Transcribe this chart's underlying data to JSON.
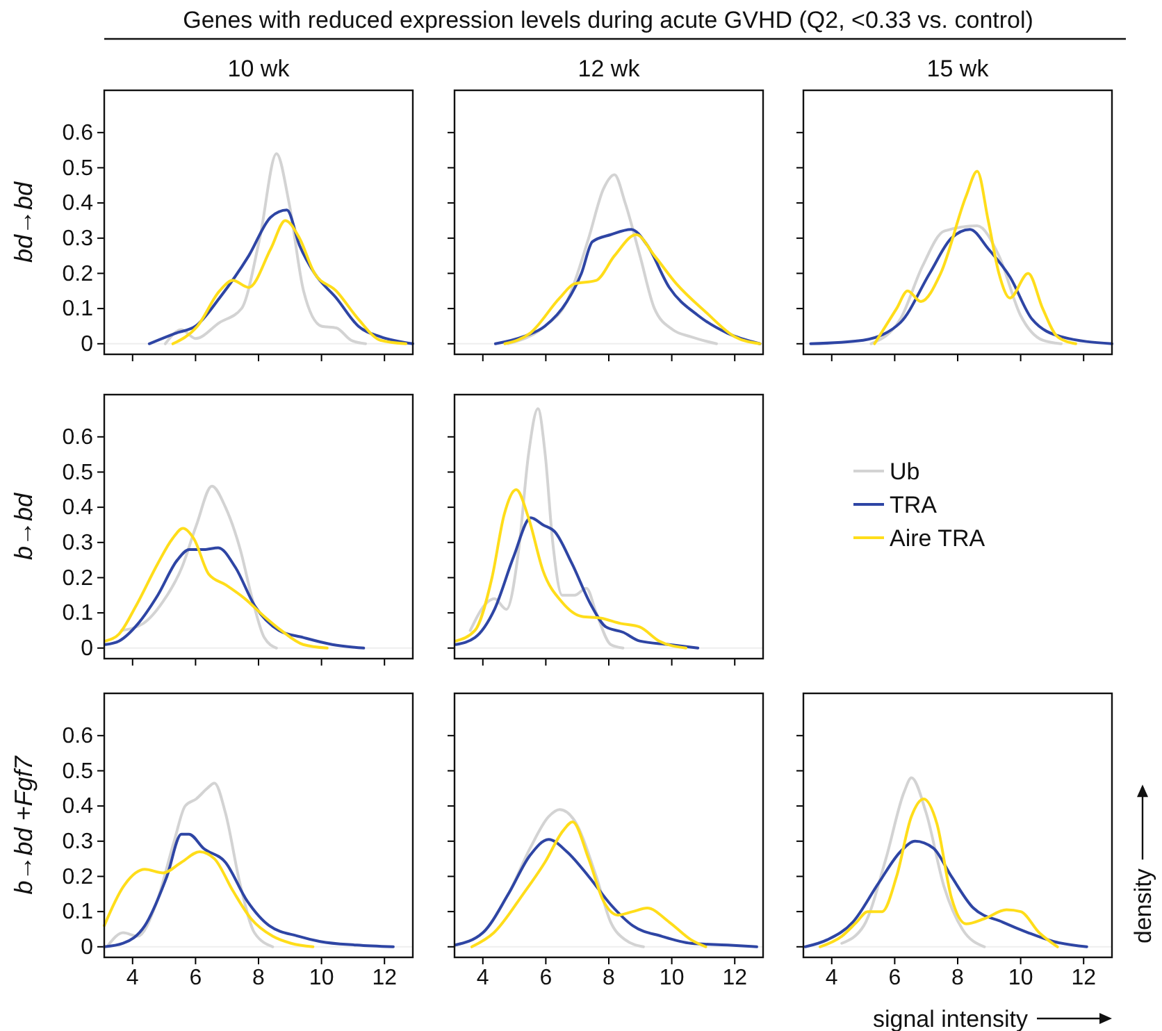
{
  "chart_data": [
    {
      "type": "line",
      "title": "10 wk",
      "ylabel": "bd→bd",
      "xlim": [
        3.1,
        12.9
      ],
      "ylim": [
        -0.03,
        0.72
      ],
      "xticks": [
        4,
        6,
        8,
        10,
        12
      ],
      "yticks": [
        0,
        0.1,
        0.2,
        0.3,
        0.4,
        0.5,
        0.6
      ],
      "tick_labels": "y",
      "ref_lines": [
        {
          "axis": "y",
          "value": 0,
          "color": "#eeeeee"
        }
      ],
      "series": [
        {
          "color": "#d3d3d3",
          "x": [
            5.04,
            5.55,
            6.0,
            6.76,
            7.46,
            8.04,
            8.57,
            8.97,
            9.43,
            10.0,
            10.47,
            10.94,
            11.4
          ],
          "values": [
            0,
            0.04,
            0.015,
            0.06,
            0.1,
            0.3,
            0.54,
            0.4,
            0.15,
            0.05,
            0.045,
            0.01,
            0
          ]
        },
        {
          "color": "#2e45a4",
          "x": [
            4.53,
            5.37,
            6.0,
            6.76,
            7.69,
            8.39,
            8.9,
            9.3,
            9.78,
            10.47,
            11.17,
            11.87,
            12.9
          ],
          "values": [
            0,
            0.03,
            0.05,
            0.13,
            0.25,
            0.36,
            0.38,
            0.28,
            0.2,
            0.13,
            0.05,
            0.02,
            0
          ]
        },
        {
          "color": "#ffdd1a",
          "x": [
            5.28,
            6.06,
            6.76,
            7.18,
            7.69,
            8.39,
            8.85,
            9.3,
            9.78,
            10.47,
            11.17,
            11.87,
            12.68
          ],
          "values": [
            0,
            0.05,
            0.15,
            0.18,
            0.16,
            0.27,
            0.35,
            0.3,
            0.2,
            0.15,
            0.07,
            0.01,
            0
          ]
        }
      ]
    },
    {
      "type": "line",
      "title": "12 wk",
      "annotations": [
        "Genes with reduced expression levels during acute GVHD (Q2, <0.33 vs. control)"
      ],
      "xlim": [
        3.1,
        12.9
      ],
      "ylim": [
        -0.03,
        0.72
      ],
      "xticks": [
        4,
        6,
        8,
        10,
        12
      ],
      "yticks": [
        0,
        0.1,
        0.2,
        0.3,
        0.4,
        0.5,
        0.6
      ],
      "tick_labels": false,
      "ref_lines": [
        {
          "axis": "y",
          "value": 0,
          "color": "#eeeeee"
        }
      ],
      "series": [
        {
          "color": "#d3d3d3",
          "x": [
            4.8,
            5.97,
            6.67,
            7.36,
            7.83,
            8.18,
            8.52,
            8.99,
            9.45,
            10.03,
            10.6,
            11.42
          ],
          "values": [
            0,
            0.05,
            0.12,
            0.3,
            0.44,
            0.48,
            0.4,
            0.25,
            0.1,
            0.04,
            0.02,
            0
          ]
        },
        {
          "color": "#2e45a4",
          "x": [
            4.4,
            5.28,
            5.97,
            6.67,
            7.13,
            7.48,
            8.06,
            8.71,
            9.22,
            9.92,
            10.84,
            11.77,
            12.8
          ],
          "values": [
            0,
            0.02,
            0.05,
            0.12,
            0.2,
            0.29,
            0.31,
            0.325,
            0.28,
            0.16,
            0.08,
            0.03,
            0
          ]
        },
        {
          "color": "#ffdd1a",
          "x": [
            4.7,
            5.5,
            6.44,
            6.9,
            7.6,
            8.18,
            8.87,
            9.45,
            10.15,
            11.08,
            12.0,
            12.8
          ],
          "values": [
            0,
            0.03,
            0.13,
            0.17,
            0.18,
            0.25,
            0.31,
            0.25,
            0.17,
            0.09,
            0.02,
            0
          ]
        }
      ]
    },
    {
      "type": "line",
      "title": "15 wk",
      "xlim": [
        3.1,
        12.9
      ],
      "ylim": [
        -0.03,
        0.72
      ],
      "xticks": [
        4,
        6,
        8,
        10,
        12
      ],
      "yticks": [
        0,
        0.1,
        0.2,
        0.3,
        0.4,
        0.5,
        0.6
      ],
      "tick_labels": false,
      "ref_lines": [
        {
          "axis": "y",
          "value": 0,
          "color": "#eeeeee"
        }
      ],
      "series": [
        {
          "color": "#d3d3d3",
          "x": [
            5.25,
            6.18,
            6.88,
            7.57,
            8.62,
            9.31,
            10.0,
            10.7,
            11.29
          ],
          "values": [
            0,
            0.07,
            0.22,
            0.32,
            0.335,
            0.25,
            0.08,
            0.01,
            0
          ]
        },
        {
          "color": "#2e45a4",
          "x": [
            3.33,
            5.0,
            6.18,
            7.11,
            7.8,
            8.39,
            8.97,
            9.66,
            10.36,
            11.29,
            12.9
          ],
          "values": [
            0,
            0.01,
            0.06,
            0.2,
            0.3,
            0.325,
            0.27,
            0.19,
            0.07,
            0.02,
            0
          ]
        },
        {
          "color": "#ffdd1a",
          "x": [
            5.36,
            6.06,
            6.41,
            6.83,
            7.46,
            8.27,
            8.62,
            8.97,
            9.31,
            9.66,
            10.24,
            10.7,
            11.17,
            11.75
          ],
          "values": [
            0,
            0.1,
            0.15,
            0.12,
            0.2,
            0.42,
            0.49,
            0.35,
            0.2,
            0.13,
            0.2,
            0.1,
            0.02,
            0
          ]
        }
      ]
    },
    {
      "type": "line",
      "ylabel": "b→bd",
      "xlim": [
        3.1,
        12.9
      ],
      "ylim": [
        -0.03,
        0.72
      ],
      "xticks": [
        4,
        6,
        8,
        10,
        12
      ],
      "yticks": [
        0,
        0.1,
        0.2,
        0.3,
        0.4,
        0.5,
        0.6
      ],
      "tick_labels": "y",
      "ref_lines": [
        {
          "axis": "y",
          "value": 0,
          "color": "#eeeeee"
        }
      ],
      "series": [
        {
          "color": "#d3d3d3",
          "x": [
            3.65,
            4.34,
            4.95,
            5.57,
            6.03,
            6.52,
            6.95,
            7.42,
            7.8,
            8.18,
            8.57
          ],
          "values": [
            0.05,
            0.07,
            0.13,
            0.23,
            0.35,
            0.46,
            0.4,
            0.28,
            0.14,
            0.03,
            0
          ]
        },
        {
          "color": "#2e45a4",
          "x": [
            3.14,
            3.57,
            4.18,
            4.8,
            5.42,
            5.8,
            6.26,
            6.72,
            7.26,
            7.88,
            8.65,
            9.42,
            10.34,
            11.34
          ],
          "values": [
            0.01,
            0.02,
            0.07,
            0.15,
            0.25,
            0.28,
            0.28,
            0.285,
            0.23,
            0.12,
            0.05,
            0.03,
            0.01,
            0
          ]
        },
        {
          "color": "#ffdd1a",
          "x": [
            3.14,
            3.57,
            4.11,
            4.8,
            5.26,
            5.6,
            5.95,
            6.42,
            6.95,
            7.57,
            8.18,
            8.72,
            9.42,
            10.18
          ],
          "values": [
            0.02,
            0.04,
            0.12,
            0.24,
            0.31,
            0.34,
            0.31,
            0.21,
            0.18,
            0.14,
            0.09,
            0.05,
            0.01,
            0
          ]
        }
      ]
    },
    {
      "type": "line",
      "legend": "right",
      "xlim": [
        3.1,
        12.9
      ],
      "ylim": [
        -0.03,
        0.72
      ],
      "xticks": [
        4,
        6,
        8,
        10,
        12
      ],
      "yticks": [
        0,
        0.1,
        0.2,
        0.3,
        0.4,
        0.5,
        0.6
      ],
      "tick_labels": false,
      "ref_lines": [
        {
          "axis": "y",
          "value": 0,
          "color": "#eeeeee"
        }
      ],
      "series": [
        {
          "name": "Ub",
          "color": "#d3d3d3",
          "x": [
            3.6,
            4.14,
            4.37,
            4.75,
            5.14,
            5.45,
            5.75,
            5.98,
            6.22,
            6.52,
            6.91,
            7.29,
            7.6,
            8.06,
            8.45
          ],
          "values": [
            0.05,
            0.13,
            0.14,
            0.11,
            0.28,
            0.55,
            0.68,
            0.55,
            0.3,
            0.15,
            0.15,
            0.17,
            0.1,
            0.01,
            0
          ]
        },
        {
          "name": "TRA",
          "color": "#2e45a4",
          "x": [
            3.14,
            3.75,
            4.37,
            4.98,
            5.52,
            5.91,
            6.29,
            6.83,
            7.45,
            7.91,
            8.45,
            8.98,
            9.91,
            10.83
          ],
          "values": [
            0.01,
            0.03,
            0.11,
            0.26,
            0.37,
            0.35,
            0.33,
            0.24,
            0.12,
            0.06,
            0.045,
            0.02,
            0.01,
            0
          ]
        },
        {
          "name": "Aire TRA",
          "color": "#ffdd1a",
          "x": [
            3.14,
            3.75,
            4.29,
            4.68,
            5.06,
            5.45,
            5.91,
            6.52,
            7.14,
            7.75,
            8.37,
            8.98,
            9.6,
            10.45
          ],
          "values": [
            0.02,
            0.05,
            0.2,
            0.38,
            0.45,
            0.37,
            0.22,
            0.13,
            0.09,
            0.085,
            0.07,
            0.06,
            0.02,
            0
          ]
        }
      ]
    },
    {
      "type": "line",
      "ylabel": "b→bd +Fgf7",
      "xlim": [
        3.1,
        12.9
      ],
      "ylim": [
        -0.03,
        0.72
      ],
      "xticks": [
        4,
        6,
        8,
        10,
        12
      ],
      "yticks": [
        0,
        0.1,
        0.2,
        0.3,
        0.4,
        0.5,
        0.6
      ],
      "ref_lines": [
        {
          "axis": "y",
          "value": 0,
          "color": "#eeeeee"
        }
      ],
      "series": [
        {
          "color": "#d3d3d3",
          "x": [
            3.23,
            3.7,
            4.16,
            4.74,
            5.32,
            5.67,
            6.02,
            6.37,
            6.6,
            6.95,
            7.41,
            7.87,
            8.45
          ],
          "values": [
            0.005,
            0.04,
            0.03,
            0.12,
            0.3,
            0.4,
            0.42,
            0.45,
            0.465,
            0.38,
            0.18,
            0.04,
            0
          ]
        },
        {
          "color": "#2e45a4",
          "x": [
            3.1,
            3.7,
            4.39,
            5.09,
            5.55,
            5.79,
            6.25,
            6.95,
            7.64,
            8.34,
            9.27,
            9.96,
            11.12,
            12.28
          ],
          "values": [
            0,
            0.01,
            0.06,
            0.2,
            0.32,
            0.32,
            0.28,
            0.24,
            0.13,
            0.06,
            0.03,
            0.015,
            0.005,
            0
          ]
        },
        {
          "color": "#ffdd1a",
          "x": [
            3.1,
            3.7,
            4.39,
            4.97,
            5.55,
            6.13,
            6.6,
            7.18,
            7.76,
            8.45,
            9.03,
            9.73
          ],
          "values": [
            0.06,
            0.17,
            0.22,
            0.21,
            0.24,
            0.27,
            0.25,
            0.16,
            0.08,
            0.03,
            0.01,
            0
          ]
        }
      ]
    },
    {
      "type": "line",
      "xlim": [
        3.1,
        12.9
      ],
      "ylim": [
        -0.03,
        0.72
      ],
      "xticks": [
        4,
        6,
        8,
        10,
        12
      ],
      "yticks": [
        0,
        0.1,
        0.2,
        0.3,
        0.4,
        0.5,
        0.6
      ],
      "tick_labels": "x",
      "ref_lines": [
        {
          "axis": "y",
          "value": 0,
          "color": "#eeeeee"
        }
      ],
      "series": [
        {
          "color": "#d3d3d3",
          "x": [
            3.12,
            4.0,
            4.81,
            5.5,
            6.09,
            6.44,
            6.9,
            7.6,
            8.06,
            8.52,
            9.1
          ],
          "values": [
            0.005,
            0.04,
            0.15,
            0.28,
            0.37,
            0.39,
            0.36,
            0.2,
            0.07,
            0.02,
            0
          ]
        },
        {
          "color": "#2e45a4",
          "x": [
            3.12,
            4.0,
            4.81,
            5.5,
            6.09,
            6.67,
            7.36,
            8.06,
            8.76,
            9.68,
            10.61,
            11.77,
            12.7
          ],
          "values": [
            0.005,
            0.04,
            0.15,
            0.26,
            0.305,
            0.27,
            0.2,
            0.12,
            0.06,
            0.03,
            0.01,
            0.005,
            0
          ]
        },
        {
          "color": "#ffdd1a",
          "x": [
            3.65,
            4.35,
            5.28,
            5.97,
            6.55,
            6.85,
            7.36,
            7.83,
            8.29,
            8.76,
            9.22,
            9.92,
            10.61,
            11.08
          ],
          "values": [
            0,
            0.04,
            0.15,
            0.24,
            0.33,
            0.355,
            0.25,
            0.13,
            0.09,
            0.1,
            0.11,
            0.07,
            0.02,
            0
          ]
        }
      ]
    },
    {
      "type": "line",
      "xlabel": "signal intensity",
      "y2label": "density",
      "xlim": [
        3.1,
        12.9
      ],
      "ylim": [
        -0.03,
        0.72
      ],
      "xticks": [
        4,
        6,
        8,
        10,
        12
      ],
      "yticks": [
        0,
        0.1,
        0.2,
        0.3,
        0.4,
        0.5,
        0.6
      ],
      "tick_labels": "x",
      "ref_lines": [
        {
          "axis": "y",
          "value": 0,
          "color": "#eeeeee"
        }
      ],
      "series": [
        {
          "color": "#d3d3d3",
          "x": [
            4.32,
            5.02,
            5.72,
            6.3,
            6.53,
            7.0,
            7.57,
            8.15,
            8.85
          ],
          "values": [
            0.01,
            0.06,
            0.25,
            0.44,
            0.48,
            0.38,
            0.17,
            0.05,
            0
          ]
        },
        {
          "color": "#2e45a4",
          "x": [
            3.16,
            3.86,
            4.67,
            5.48,
            6.18,
            6.65,
            7.23,
            7.8,
            8.5,
            9.43,
            10.24,
            11.05,
            12.1
          ],
          "values": [
            0,
            0.02,
            0.07,
            0.18,
            0.27,
            0.3,
            0.28,
            0.2,
            0.11,
            0.07,
            0.04,
            0.015,
            0
          ]
        },
        {
          "color": "#ffdd1a",
          "x": [
            3.63,
            4.32,
            4.79,
            5.14,
            5.6,
            6.06,
            6.53,
            6.92,
            7.34,
            7.8,
            8.27,
            8.85,
            9.55,
            10.0,
            10.59,
            11.17
          ],
          "values": [
            0,
            0.03,
            0.07,
            0.1,
            0.1,
            0.2,
            0.37,
            0.42,
            0.35,
            0.14,
            0.065,
            0.08,
            0.105,
            0.1,
            0.04,
            0
          ]
        }
      ]
    }
  ]
}
